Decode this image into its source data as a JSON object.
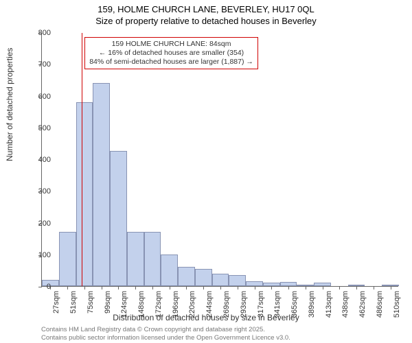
{
  "title_line1": "159, HOLME CHURCH LANE, BEVERLEY, HU17 0QL",
  "title_line2": "Size of property relative to detached houses in Beverley",
  "y_axis_label": "Number of detached properties",
  "x_axis_label": "Distribution of detached houses by size in Beverley",
  "footer_line1": "Contains HM Land Registry data © Crown copyright and database right 2025.",
  "footer_line2": "Contains public sector information licensed under the Open Government Licence v3.0.",
  "chart": {
    "type": "histogram",
    "ylim": [
      0,
      800
    ],
    "ytick_step": 100,
    "yticks": [
      0,
      100,
      200,
      300,
      400,
      500,
      600,
      700,
      800
    ],
    "x_categories": [
      "27sqm",
      "51sqm",
      "75sqm",
      "99sqm",
      "124sqm",
      "148sqm",
      "172sqm",
      "196sqm",
      "220sqm",
      "244sqm",
      "269sqm",
      "293sqm",
      "317sqm",
      "341sqm",
      "365sqm",
      "389sqm",
      "413sqm",
      "438sqm",
      "462sqm",
      "486sqm",
      "510sqm"
    ],
    "values": [
      20,
      170,
      580,
      640,
      425,
      170,
      170,
      100,
      60,
      55,
      40,
      35,
      15,
      10,
      12,
      5,
      10,
      0,
      5,
      0,
      5
    ],
    "bar_fill": "#c3d1ec",
    "bar_border": "#8893b3",
    "background": "#ffffff",
    "marker_color": "#d00000",
    "marker_position_index": 2.35,
    "annotation": {
      "line1": "159 HOLME CHURCH LANE: 84sqm",
      "line2": "← 16% of detached houses are smaller (354)",
      "line3": "84% of semi-detached houses are larger (1,887) →"
    },
    "title_fontsize": 13,
    "label_fontsize": 12,
    "tick_fontsize": 11,
    "annotation_fontsize": 10.5,
    "footer_fontsize": 9.5
  }
}
